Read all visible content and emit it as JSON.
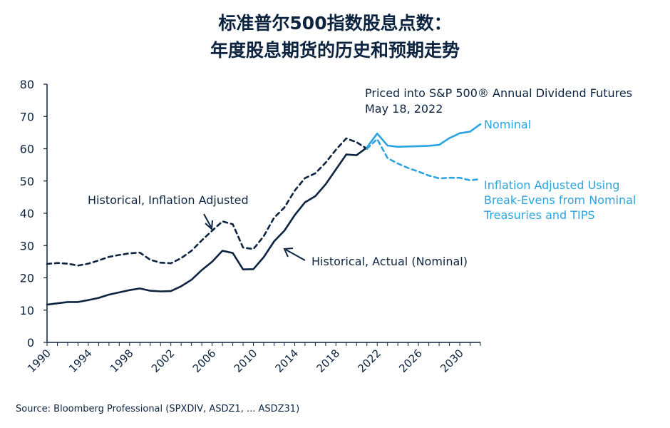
{
  "colors": {
    "navy": "#0d2440",
    "blue": "#2aa3e0",
    "axis": "#0d2440"
  },
  "chart_data": {
    "type": "line",
    "title_line1": "标准普尔500指数股息点数：",
    "title_line2": "年度股息期货的历史和预期走势",
    "ylim": [
      0,
      80
    ],
    "xlim": [
      1990,
      2032
    ],
    "y_ticks": [
      "0",
      "10",
      "20",
      "30",
      "40",
      "50",
      "60",
      "70",
      "80"
    ],
    "x_ticks": [
      "1990",
      "1994",
      "1998",
      "2002",
      "2006",
      "2010",
      "2014",
      "2018",
      "2022",
      "2026",
      "2030"
    ],
    "grid": false,
    "series": [
      {
        "name": "Historical, Actual (Nominal)",
        "style": "solid",
        "color": "#0d2440",
        "x": [
          1990,
          1991,
          1992,
          1993,
          1994,
          1995,
          1996,
          1997,
          1998,
          1999,
          2000,
          2001,
          2002,
          2003,
          2004,
          2005,
          2006,
          2007,
          2008,
          2009,
          2010,
          2011,
          2012,
          2013,
          2014,
          2015,
          2016,
          2017,
          2018,
          2019,
          2020,
          2021
        ],
        "y": [
          11.7,
          12.1,
          12.5,
          12.5,
          13.1,
          13.8,
          14.8,
          15.5,
          16.2,
          16.7,
          16.0,
          15.8,
          15.9,
          17.4,
          19.4,
          22.4,
          25.0,
          28.4,
          27.7,
          22.6,
          22.7,
          26.4,
          31.3,
          34.6,
          39.4,
          43.4,
          45.3,
          49.0,
          53.6,
          58.2,
          58.0,
          60.4
        ]
      },
      {
        "name": "Historical, Inflation Adjusted",
        "style": "dashed",
        "color": "#0d2440",
        "x": [
          1990,
          1991,
          1992,
          1993,
          1994,
          1995,
          1996,
          1997,
          1998,
          1999,
          2000,
          2001,
          2002,
          2003,
          2004,
          2005,
          2006,
          2007,
          2008,
          2009,
          2010,
          2011,
          2012,
          2013,
          2014,
          2015,
          2016,
          2017,
          2018,
          2019,
          2020,
          2021
        ],
        "y": [
          24.3,
          24.6,
          24.4,
          23.8,
          24.4,
          25.4,
          26.5,
          27.1,
          27.6,
          27.8,
          25.6,
          24.7,
          24.5,
          26.1,
          28.4,
          31.6,
          34.6,
          37.5,
          36.6,
          29.4,
          28.9,
          32.9,
          38.6,
          41.8,
          47.0,
          50.9,
          52.4,
          55.7,
          59.7,
          63.2,
          62.0,
          60.0
        ]
      },
      {
        "name": "Nominal",
        "style": "solid",
        "color": "#2aa3e0",
        "x": [
          2021,
          2022,
          2023,
          2024,
          2025,
          2026,
          2027,
          2028,
          2029,
          2030,
          2031,
          2032
        ],
        "y": [
          60.4,
          64.7,
          61.0,
          60.6,
          60.7,
          60.8,
          60.9,
          61.2,
          63.3,
          64.8,
          65.3,
          67.6
        ]
      },
      {
        "name": "Inflation Adjusted Using Break-Evens from Nominal Treasuries and TIPS",
        "style": "dashed",
        "color": "#2aa3e0",
        "x": [
          2021,
          2022,
          2023,
          2024,
          2025,
          2026,
          2027,
          2028,
          2029,
          2030,
          2031,
          2032
        ],
        "y": [
          60.0,
          63.0,
          57.1,
          55.4,
          54.0,
          52.9,
          51.7,
          50.8,
          51.0,
          51.0,
          50.2,
          50.6
        ]
      }
    ],
    "annotations": {
      "futures_header_line1": "Priced into S&P 500® Annual Dividend Futures",
      "futures_header_line2": "May 18, 2022",
      "label_nominal": "Nominal",
      "label_infl_adj_line1": "Inflation Adjusted Using",
      "label_infl_adj_line2": "Break-Evens from Nominal",
      "label_infl_adj_line3": "Treasuries and TIPS",
      "label_hist_infl": "Historical, Inflation Adjusted",
      "label_hist_actual": "Historical, Actual (Nominal)"
    },
    "source": "Source: Bloomberg Professional (SPXDIV, ASDZ1, ... ASDZ31)"
  }
}
